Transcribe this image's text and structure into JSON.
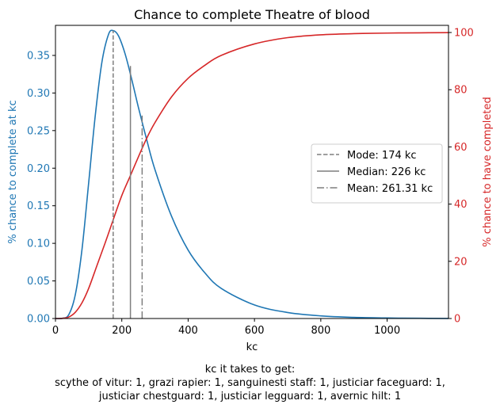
{
  "chart_data": {
    "type": "line",
    "title": "Chance to complete Theatre of blood",
    "xlabel": "kc",
    "ylabel_left": "% chance to complete at kc",
    "ylabel_right": "% chance to have completed",
    "xlim": [
      0,
      1185
    ],
    "ylim_left": [
      0,
      0.39
    ],
    "ylim_right": [
      0,
      102.5
    ],
    "x_ticks": [
      0,
      200,
      400,
      600,
      800,
      1000
    ],
    "y_left_ticks": [
      0.0,
      0.05,
      0.1,
      0.15,
      0.2,
      0.25,
      0.3,
      0.35
    ],
    "y_left_tick_labels": [
      "0.00",
      "0.05",
      "0.10",
      "0.15",
      "0.20",
      "0.25",
      "0.30",
      "0.35"
    ],
    "y_right_ticks": [
      0,
      20,
      40,
      60,
      80,
      100
    ],
    "grid": false,
    "legend_position": "center-right",
    "colors": {
      "left_axis": "#1f77b4",
      "right_axis": "#d62728",
      "markers": "#7f7f7f"
    },
    "series": [
      {
        "axis": "left",
        "color": "#1f77b4",
        "x": [
          0,
          20,
          40,
          60,
          80,
          100,
          120,
          140,
          160,
          174,
          190,
          210,
          230,
          250,
          275,
          300,
          350,
          400,
          450,
          500,
          600,
          700,
          800,
          900,
          1000,
          1100,
          1185
        ],
        "y": [
          0,
          0.0002,
          0.005,
          0.032,
          0.092,
          0.18,
          0.27,
          0.341,
          0.378,
          0.383,
          0.376,
          0.352,
          0.318,
          0.281,
          0.238,
          0.198,
          0.136,
          0.091,
          0.061,
          0.04,
          0.018,
          0.008,
          0.0035,
          0.0015,
          0.0007,
          0.0003,
          0.0001
        ]
      },
      {
        "axis": "right",
        "color": "#d62728",
        "x": [
          0,
          20,
          40,
          60,
          80,
          100,
          125,
          150,
          174,
          200,
          226,
          250,
          275,
          300,
          350,
          400,
          450,
          500,
          600,
          700,
          800,
          900,
          1000,
          1100,
          1185
        ],
        "y": [
          0,
          0.05,
          0.5,
          2.2,
          5.5,
          10.5,
          18.5,
          26.5,
          34.5,
          43,
          50,
          56.5,
          63,
          68.5,
          77.5,
          84,
          88.5,
          92,
          96,
          98.2,
          99.2,
          99.6,
          99.8,
          99.9,
          99.95
        ]
      }
    ],
    "markers": [
      {
        "label": "Mode: 174 kc",
        "x": 174,
        "y_left": 0.383,
        "style": "dashed"
      },
      {
        "label": "Median: 226 kc",
        "x": 226,
        "y_left": 0.336,
        "style": "solid"
      },
      {
        "label": "Mean: 261.31 kc",
        "x": 261.31,
        "y_left": 0.27,
        "style": "dashdot"
      }
    ]
  },
  "caption": {
    "line1": "kc it takes to get:",
    "line2": "scythe of vitur: 1,  grazi rapier: 1,  sanguinesti staff: 1,  justiciar faceguard: 1,",
    "line3": "justiciar chestguard: 1,  justiciar legguard: 1,  avernic hilt: 1"
  }
}
